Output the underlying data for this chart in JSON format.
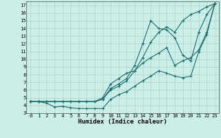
{
  "xlabel": "Humidex (Indice chaleur)",
  "bg_color": "#cceee8",
  "grid_color": "#aad4cc",
  "line_color": "#1a6b6b",
  "xlim": [
    -0.5,
    23.5
  ],
  "ylim": [
    3,
    17.5
  ],
  "xticks": [
    0,
    1,
    2,
    3,
    4,
    5,
    6,
    7,
    8,
    9,
    10,
    11,
    12,
    13,
    14,
    15,
    16,
    17,
    18,
    19,
    20,
    21,
    22,
    23
  ],
  "yticks": [
    3,
    4,
    5,
    6,
    7,
    8,
    9,
    10,
    11,
    12,
    13,
    14,
    15,
    16,
    17
  ],
  "line1_x": [
    0,
    1,
    2,
    3,
    4,
    5,
    6,
    7,
    8,
    9,
    10,
    11,
    12,
    13,
    14,
    15,
    16,
    17,
    18,
    19,
    20,
    21,
    22,
    23
  ],
  "line1_y": [
    4.5,
    4.5,
    4.3,
    3.8,
    3.9,
    3.7,
    3.6,
    3.6,
    3.6,
    3.6,
    4.8,
    5.4,
    5.8,
    6.5,
    7.2,
    7.8,
    8.5,
    8.2,
    7.8,
    7.6,
    7.8,
    11.0,
    13.2,
    17.2
  ],
  "line2_x": [
    0,
    1,
    2,
    3,
    4,
    5,
    6,
    7,
    8,
    9,
    10,
    11,
    12,
    13,
    14,
    15,
    16,
    17,
    18,
    19,
    20,
    21,
    22,
    23
  ],
  "line2_y": [
    4.5,
    4.5,
    4.5,
    4.5,
    4.5,
    4.5,
    4.5,
    4.5,
    4.5,
    5.0,
    6.8,
    7.5,
    8.2,
    8.5,
    9.5,
    10.2,
    10.8,
    11.5,
    9.2,
    9.8,
    10.2,
    11.2,
    13.5,
    17.2
  ],
  "line3_x": [
    0,
    1,
    2,
    3,
    4,
    5,
    6,
    7,
    8,
    9,
    10,
    11,
    12,
    13,
    14,
    15,
    16,
    17,
    18,
    19,
    20,
    21,
    22,
    23
  ],
  "line3_y": [
    4.5,
    4.5,
    4.5,
    4.5,
    4.5,
    4.5,
    4.5,
    4.5,
    4.5,
    4.8,
    6.2,
    6.8,
    7.5,
    9.2,
    12.0,
    15.0,
    14.0,
    13.8,
    12.8,
    10.5,
    9.8,
    13.5,
    15.8,
    17.2
  ],
  "line4_x": [
    0,
    1,
    2,
    3,
    4,
    5,
    6,
    7,
    8,
    9,
    10,
    11,
    12,
    13,
    14,
    15,
    16,
    17,
    18,
    19,
    20,
    21,
    22,
    23
  ],
  "line4_y": [
    4.5,
    4.5,
    4.5,
    4.5,
    4.5,
    4.5,
    4.5,
    4.5,
    4.5,
    4.8,
    6.0,
    6.5,
    7.2,
    8.5,
    10.2,
    12.2,
    13.5,
    14.2,
    13.5,
    15.0,
    15.8,
    16.2,
    16.8,
    17.2
  ],
  "marker": "+",
  "markersize": 3,
  "linewidth": 0.8,
  "tick_fontsize": 5,
  "xlabel_fontsize": 6.5
}
